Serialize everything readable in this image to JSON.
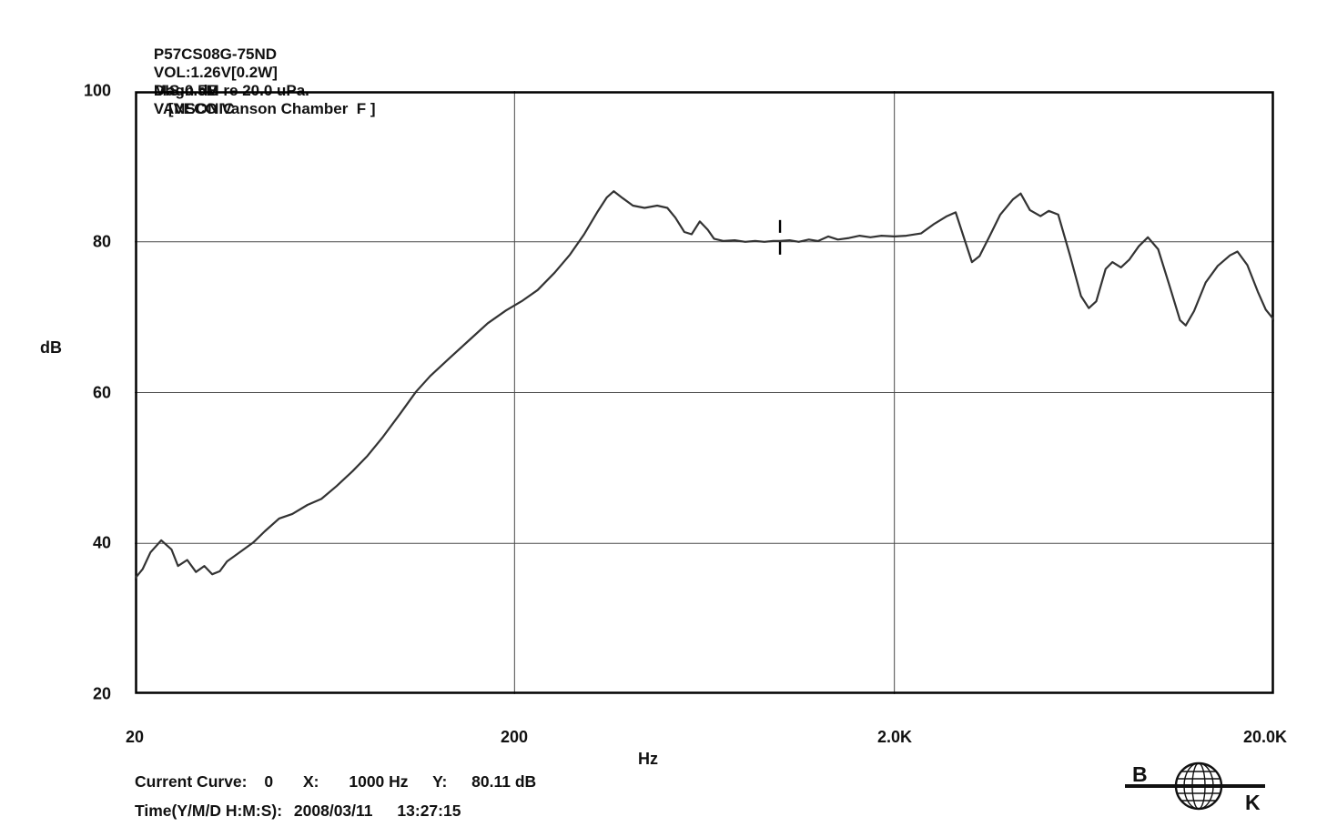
{
  "header": {
    "model": "P57CS08G-75ND",
    "voltage": "VOL:1.26V[0.2W]",
    "distance": "DIS:0.5M",
    "brand": "VANSONIC"
  },
  "subtitle": {
    "magnitude": "Magn dB re 20.0 uPa.",
    "chamber": "[VECO Vanson Chamber  F ]"
  },
  "readout": {
    "label": "Current Curve:",
    "curve_index": "0",
    "x_label": "X:",
    "x_value": "1000 Hz",
    "y_label": "Y:",
    "y_value": "80.11 dB"
  },
  "timestamp": {
    "label": "Time(Y/M/D H:M:S):",
    "date": "2008/03/11",
    "time": "13:27:15"
  },
  "logo": {
    "b": "B",
    "k": "K"
  },
  "colors": {
    "curve": "#333333",
    "grid": "#4a4a4a",
    "frame": "#000000",
    "text": "#111111",
    "background": "#ffffff"
  },
  "chart_data": {
    "type": "line",
    "title": "Magn dB re 20.0 uPa. [VECO Vanson Chamber F] — frequency response",
    "xlabel": "Hz",
    "ylabel": "dB",
    "x_scale": "log",
    "xlim": [
      20,
      20000
    ],
    "ylim": [
      20,
      100
    ],
    "grid": true,
    "x_ticks": {
      "values": [
        20,
        200,
        2000,
        20000
      ],
      "labels": [
        "20",
        "200",
        "2.0K",
        "20.0K"
      ]
    },
    "y_ticks": {
      "values": [
        100,
        80,
        60,
        40,
        20
      ],
      "labels": [
        "100",
        "80",
        "60",
        "40",
        "20"
      ]
    },
    "cursor": {
      "freq_hz": 1000,
      "db": 80.11
    },
    "series": [
      {
        "name": "Current Curve 0",
        "points": [
          [
            20,
            35.3
          ],
          [
            21,
            36.6
          ],
          [
            22,
            38.8
          ],
          [
            23.5,
            40.4
          ],
          [
            25,
            39.2
          ],
          [
            26,
            37.0
          ],
          [
            27.5,
            37.8
          ],
          [
            29,
            36.2
          ],
          [
            30.5,
            37.0
          ],
          [
            32,
            35.9
          ],
          [
            33.5,
            36.3
          ],
          [
            35,
            37.6
          ],
          [
            38,
            38.9
          ],
          [
            41,
            40.1
          ],
          [
            44,
            41.6
          ],
          [
            48,
            43.3
          ],
          [
            52,
            43.9
          ],
          [
            57,
            45.1
          ],
          [
            62,
            45.9
          ],
          [
            68,
            47.6
          ],
          [
            75,
            49.6
          ],
          [
            82,
            51.6
          ],
          [
            90,
            54.1
          ],
          [
            100,
            57.2
          ],
          [
            110,
            60.1
          ],
          [
            120,
            62.2
          ],
          [
            135,
            64.6
          ],
          [
            150,
            66.7
          ],
          [
            170,
            69.2
          ],
          [
            190,
            70.9
          ],
          [
            210,
            72.2
          ],
          [
            230,
            73.6
          ],
          [
            255,
            75.9
          ],
          [
            280,
            78.3
          ],
          [
            305,
            81.0
          ],
          [
            330,
            83.9
          ],
          [
            350,
            85.9
          ],
          [
            365,
            86.7
          ],
          [
            385,
            85.8
          ],
          [
            410,
            84.8
          ],
          [
            440,
            84.5
          ],
          [
            475,
            84.8
          ],
          [
            505,
            84.5
          ],
          [
            530,
            83.2
          ],
          [
            560,
            81.3
          ],
          [
            585,
            81.0
          ],
          [
            615,
            82.7
          ],
          [
            645,
            81.6
          ],
          [
            670,
            80.4
          ],
          [
            710,
            80.1
          ],
          [
            760,
            80.2
          ],
          [
            810,
            80.0
          ],
          [
            860,
            80.1
          ],
          [
            910,
            80.0
          ],
          [
            960,
            80.1
          ],
          [
            1000,
            80.11
          ],
          [
            1060,
            80.2
          ],
          [
            1120,
            80.0
          ],
          [
            1190,
            80.3
          ],
          [
            1260,
            80.1
          ],
          [
            1340,
            80.7
          ],
          [
            1420,
            80.3
          ],
          [
            1520,
            80.5
          ],
          [
            1620,
            80.8
          ],
          [
            1730,
            80.6
          ],
          [
            1850,
            80.8
          ],
          [
            2000,
            80.7
          ],
          [
            2150,
            80.8
          ],
          [
            2350,
            81.1
          ],
          [
            2550,
            82.4
          ],
          [
            2750,
            83.4
          ],
          [
            2900,
            83.9
          ],
          [
            3050,
            80.5
          ],
          [
            3200,
            77.3
          ],
          [
            3350,
            78.1
          ],
          [
            3550,
            80.6
          ],
          [
            3800,
            83.6
          ],
          [
            4100,
            85.6
          ],
          [
            4300,
            86.4
          ],
          [
            4550,
            84.2
          ],
          [
            4850,
            83.4
          ],
          [
            5100,
            84.1
          ],
          [
            5400,
            83.6
          ],
          [
            5800,
            78.2
          ],
          [
            6200,
            72.8
          ],
          [
            6500,
            71.2
          ],
          [
            6800,
            72.1
          ],
          [
            7200,
            76.4
          ],
          [
            7500,
            77.3
          ],
          [
            7900,
            76.6
          ],
          [
            8300,
            77.6
          ],
          [
            8800,
            79.4
          ],
          [
            9300,
            80.6
          ],
          [
            9900,
            79.0
          ],
          [
            10600,
            74.2
          ],
          [
            11300,
            69.6
          ],
          [
            11700,
            68.9
          ],
          [
            12300,
            70.8
          ],
          [
            13200,
            74.6
          ],
          [
            14200,
            76.8
          ],
          [
            15300,
            78.2
          ],
          [
            16000,
            78.7
          ],
          [
            17000,
            76.9
          ],
          [
            18100,
            73.4
          ],
          [
            19000,
            71.0
          ],
          [
            20000,
            69.6
          ]
        ]
      }
    ]
  }
}
